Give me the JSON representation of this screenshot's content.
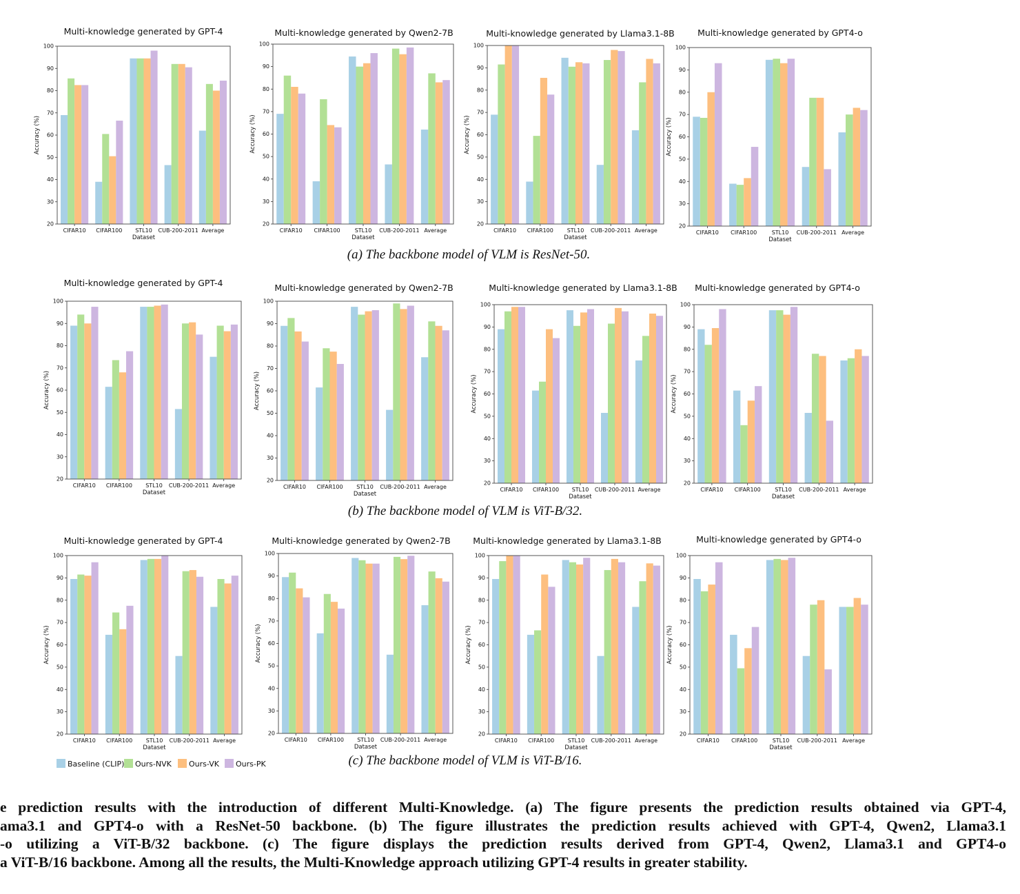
{
  "legend": [
    "Baseline (CLIP)",
    "Ours-NVK",
    "Ours-VK",
    "Ours-PK"
  ],
  "colors": [
    "#a8d0e6",
    "#b2e095",
    "#fdbf7f",
    "#cdb6e0"
  ],
  "subcaptions": [
    "(a) The backbone model of VLM is ResNet-50.",
    "(b) The backbone model of VLM is ViT-B/32.",
    "(c) The backbone model of VLM is ViT-B/16."
  ],
  "caption_lines": [
    "e prediction results with the introduction of different Multi-Knowledge. (a) The figure presents the prediction results obtained via GPT-4,",
    "ama3.1 and GPT4-o with a ResNet-50 backbone. (b) The figure illustrates the prediction results achieved with GPT-4, Qwen2, Llama3.1",
    "-o utilizing a ViT-B/32 backbone. (c) The figure displays the prediction results derived from GPT-4, Qwen2, Llama3.1 and GPT4-o",
    "a ViT-B/16 backbone. Among all the results, the Multi-Knowledge approach utilizing GPT-4 results in greater stability."
  ],
  "chart_data": [
    {
      "type": "bar",
      "title": "Multi-knowledge generated by GPT-4",
      "xlabel": "Dataset",
      "ylabel": "Accuracy (%)",
      "ylim": [
        20,
        100
      ],
      "yticks": [
        20,
        30,
        40,
        50,
        60,
        70,
        80,
        90,
        100
      ],
      "categories": [
        "CIFAR10",
        "CIFAR100",
        "STL10",
        "CUB-200-2011",
        "Average"
      ],
      "series": [
        {
          "name": "Baseline (CLIP)",
          "values": [
            69,
            39,
            94.5,
            46.5,
            62
          ]
        },
        {
          "name": "Ours-NVK",
          "values": [
            85.5,
            60.5,
            94.5,
            92,
            83
          ]
        },
        {
          "name": "Ours-VK",
          "values": [
            82.5,
            50.5,
            94.5,
            92,
            80
          ]
        },
        {
          "name": "Ours-PK",
          "values": [
            82.5,
            66.5,
            98,
            90.5,
            84.5
          ]
        }
      ]
    },
    {
      "type": "bar",
      "title": "Multi-knowledge generated by Qwen2-7B",
      "xlabel": "Dataset",
      "ylabel": "Accuracy (%)",
      "ylim": [
        20,
        100
      ],
      "yticks": [
        20,
        30,
        40,
        50,
        60,
        70,
        80,
        90,
        100
      ],
      "categories": [
        "CIFAR10",
        "CIFAR100",
        "STL10",
        "CUB-200-2011",
        "Average"
      ],
      "series": [
        {
          "name": "Baseline (CLIP)",
          "values": [
            69,
            39,
            94.5,
            46.5,
            62
          ]
        },
        {
          "name": "Ours-NVK",
          "values": [
            86,
            75.5,
            90,
            98,
            87
          ]
        },
        {
          "name": "Ours-VK",
          "values": [
            81,
            64,
            91.5,
            95.5,
            83
          ]
        },
        {
          "name": "Ours-PK",
          "values": [
            78,
            63,
            96,
            98.5,
            84
          ]
        }
      ]
    },
    {
      "type": "bar",
      "title": "Multi-knowledge generated by Llama3.1-8B",
      "xlabel": "Dataset",
      "ylabel": "Accuracy (%)",
      "ylim": [
        20,
        100
      ],
      "yticks": [
        20,
        30,
        40,
        50,
        60,
        70,
        80,
        90,
        100
      ],
      "categories": [
        "CIFAR10",
        "CIFAR100",
        "STL10",
        "CUB-200-2011",
        "Average"
      ],
      "series": [
        {
          "name": "Baseline (CLIP)",
          "values": [
            69,
            39,
            94.5,
            46.5,
            62
          ]
        },
        {
          "name": "Ours-NVK",
          "values": [
            91.5,
            59.5,
            90.5,
            93.5,
            83.5
          ]
        },
        {
          "name": "Ours-VK",
          "values": [
            100,
            85.5,
            92.5,
            98,
            94
          ]
        },
        {
          "name": "Ours-PK",
          "values": [
            100,
            78,
            92,
            97.5,
            92
          ]
        }
      ]
    },
    {
      "type": "bar",
      "title": "Multi-knowledge generated by GPT4-o",
      "xlabel": "Dataset",
      "ylabel": "Accuracy (%)",
      "ylim": [
        20,
        100
      ],
      "yticks": [
        20,
        30,
        40,
        50,
        60,
        70,
        80,
        90,
        100
      ],
      "categories": [
        "CIFAR10",
        "CIFAR100",
        "STL10",
        "CUB-200-2011",
        "Average"
      ],
      "series": [
        {
          "name": "Baseline (CLIP)",
          "values": [
            69,
            39,
            94.5,
            46.5,
            62
          ]
        },
        {
          "name": "Ours-NVK",
          "values": [
            68.5,
            38.5,
            95,
            77.5,
            70
          ]
        },
        {
          "name": "Ours-VK",
          "values": [
            80,
            41.5,
            93,
            77.5,
            73
          ]
        },
        {
          "name": "Ours-PK",
          "values": [
            93,
            55.5,
            95,
            45.5,
            72
          ]
        }
      ]
    },
    {
      "type": "bar",
      "title": "Multi-knowledge generated by GPT-4",
      "xlabel": "Dataset",
      "ylabel": "Accuracy (%)",
      "ylim": [
        20,
        100
      ],
      "yticks": [
        20,
        30,
        40,
        50,
        60,
        70,
        80,
        90,
        100
      ],
      "categories": [
        "CIFAR10",
        "CIFAR100",
        "STL10",
        "CUB-200-2011",
        "Average"
      ],
      "series": [
        {
          "name": "Baseline (CLIP)",
          "values": [
            89,
            61.5,
            97.5,
            51.5,
            75
          ]
        },
        {
          "name": "Ours-NVK",
          "values": [
            94,
            73.5,
            97.5,
            90,
            89
          ]
        },
        {
          "name": "Ours-VK",
          "values": [
            90,
            68,
            98,
            90.5,
            86.5
          ]
        },
        {
          "name": "Ours-PK",
          "values": [
            97.5,
            77.5,
            98.5,
            85,
            89.5
          ]
        }
      ]
    },
    {
      "type": "bar",
      "title": "Multi-knowledge generated by Qwen2-7B",
      "xlabel": "Dataset",
      "ylabel": "Accuracy (%)",
      "ylim": [
        20,
        100
      ],
      "yticks": [
        20,
        30,
        40,
        50,
        60,
        70,
        80,
        90,
        100
      ],
      "categories": [
        "CIFAR10",
        "CIFAR100",
        "STL10",
        "CUB-200-2011",
        "Average"
      ],
      "series": [
        {
          "name": "Baseline (CLIP)",
          "values": [
            89,
            61.5,
            97.5,
            51.5,
            75
          ]
        },
        {
          "name": "Ours-NVK",
          "values": [
            92.5,
            79,
            94,
            99,
            91
          ]
        },
        {
          "name": "Ours-VK",
          "values": [
            86.5,
            77.5,
            95.5,
            96.5,
            89
          ]
        },
        {
          "name": "Ours-PK",
          "values": [
            82,
            72,
            96,
            98,
            87
          ]
        }
      ]
    },
    {
      "type": "bar",
      "title": "Multi-knowledge generated by Llama3.1-8B",
      "xlabel": "Dataset",
      "ylabel": "Accuracy (%)",
      "ylim": [
        20,
        100
      ],
      "yticks": [
        20,
        30,
        40,
        50,
        60,
        70,
        80,
        90,
        100
      ],
      "categories": [
        "CIFAR10",
        "CIFAR100",
        "STL10",
        "CUB-200-2011",
        "Average"
      ],
      "series": [
        {
          "name": "Baseline (CLIP)",
          "values": [
            89,
            61.5,
            97.5,
            51.5,
            75
          ]
        },
        {
          "name": "Ours-NVK",
          "values": [
            97,
            65.5,
            90.5,
            91.5,
            86
          ]
        },
        {
          "name": "Ours-VK",
          "values": [
            99,
            89,
            96.5,
            98.5,
            96
          ]
        },
        {
          "name": "Ours-PK",
          "values": [
            99,
            85,
            98,
            97,
            95
          ]
        }
      ]
    },
    {
      "type": "bar",
      "title": "Multi-knowledge generated by GPT4-o",
      "xlabel": "Dataset",
      "ylabel": "Accuracy (%)",
      "ylim": [
        20,
        100
      ],
      "yticks": [
        20,
        30,
        40,
        50,
        60,
        70,
        80,
        90,
        100
      ],
      "categories": [
        "CIFAR10",
        "CIFAR100",
        "STL10",
        "CUB-200-2011",
        "Average"
      ],
      "series": [
        {
          "name": "Baseline (CLIP)",
          "values": [
            89,
            61.5,
            97.5,
            51.5,
            75
          ]
        },
        {
          "name": "Ours-NVK",
          "values": [
            82,
            46,
            97.5,
            78,
            76
          ]
        },
        {
          "name": "Ours-VK",
          "values": [
            89.5,
            57,
            95.5,
            77,
            80
          ]
        },
        {
          "name": "Ours-PK",
          "values": [
            98,
            63.5,
            99,
            48,
            77
          ]
        }
      ]
    },
    {
      "type": "bar",
      "title": "Multi-knowledge generated by GPT-4",
      "xlabel": "Dataset",
      "ylabel": "Accuracy (%)",
      "ylim": [
        20,
        100
      ],
      "yticks": [
        20,
        30,
        40,
        50,
        60,
        70,
        80,
        90,
        100
      ],
      "categories": [
        "CIFAR10",
        "CIFAR100",
        "STL10",
        "CUB-200-2011",
        "Average"
      ],
      "series": [
        {
          "name": "Baseline (CLIP)",
          "values": [
            89.5,
            64.5,
            98,
            55,
            77
          ]
        },
        {
          "name": "Ours-NVK",
          "values": [
            91.5,
            74.5,
            98.5,
            93,
            89.5
          ]
        },
        {
          "name": "Ours-VK",
          "values": [
            91,
            67,
            98.5,
            93.5,
            87.5
          ]
        },
        {
          "name": "Ours-PK",
          "values": [
            97,
            77.5,
            100,
            90.5,
            91
          ]
        }
      ]
    },
    {
      "type": "bar",
      "title": "Multi-knowledge generated by Qwen2-7B",
      "xlabel": "Dataset",
      "ylabel": "Accuracy (%)",
      "ylim": [
        20,
        100
      ],
      "yticks": [
        20,
        30,
        40,
        50,
        60,
        70,
        80,
        90,
        100
      ],
      "categories": [
        "CIFAR10",
        "CIFAR100",
        "STL10",
        "CUB-200-2011",
        "Average"
      ],
      "series": [
        {
          "name": "Baseline (CLIP)",
          "values": [
            89.5,
            64.5,
            98,
            55,
            77
          ]
        },
        {
          "name": "Ours-NVK",
          "values": [
            91.5,
            82,
            97,
            98.5,
            92
          ]
        },
        {
          "name": "Ours-VK",
          "values": [
            84.5,
            78.5,
            95.5,
            97.5,
            89
          ]
        },
        {
          "name": "Ours-PK",
          "values": [
            80.5,
            75.5,
            95.5,
            99,
            87.5
          ]
        }
      ]
    },
    {
      "type": "bar",
      "title": "Multi-knowledge generated by Llama3.1-8B",
      "xlabel": "Dataset",
      "ylabel": "Accuracy (%)",
      "ylim": [
        20,
        100
      ],
      "yticks": [
        20,
        30,
        40,
        50,
        60,
        70,
        80,
        90,
        100
      ],
      "categories": [
        "CIFAR10",
        "CIFAR100",
        "STL10",
        "CUB-200-2011",
        "Average"
      ],
      "series": [
        {
          "name": "Baseline (CLIP)",
          "values": [
            89.5,
            64.5,
            98,
            55,
            77
          ]
        },
        {
          "name": "Ours-NVK",
          "values": [
            97.5,
            66.5,
            97,
            93.5,
            88.5
          ]
        },
        {
          "name": "Ours-VK",
          "values": [
            100,
            91.5,
            96,
            98.5,
            96.5
          ]
        },
        {
          "name": "Ours-PK",
          "values": [
            100,
            86,
            99,
            97,
            95.5
          ]
        }
      ]
    },
    {
      "type": "bar",
      "title": "Multi-knowledge generated by GPT4-o",
      "xlabel": "Dataset",
      "ylabel": "Accuracy (%)",
      "ylim": [
        20,
        100
      ],
      "yticks": [
        20,
        30,
        40,
        50,
        60,
        70,
        80,
        90,
        100
      ],
      "categories": [
        "CIFAR10",
        "CIFAR100",
        "STL10",
        "CUB-200-2011",
        "Average"
      ],
      "series": [
        {
          "name": "Baseline (CLIP)",
          "values": [
            89.5,
            64.5,
            98,
            55,
            77
          ]
        },
        {
          "name": "Ours-NVK",
          "values": [
            84,
            49.5,
            98.5,
            78,
            77
          ]
        },
        {
          "name": "Ours-VK",
          "values": [
            87,
            58.5,
            98,
            80,
            81
          ]
        },
        {
          "name": "Ours-PK",
          "values": [
            97,
            68,
            99,
            49,
            78
          ]
        }
      ]
    }
  ]
}
